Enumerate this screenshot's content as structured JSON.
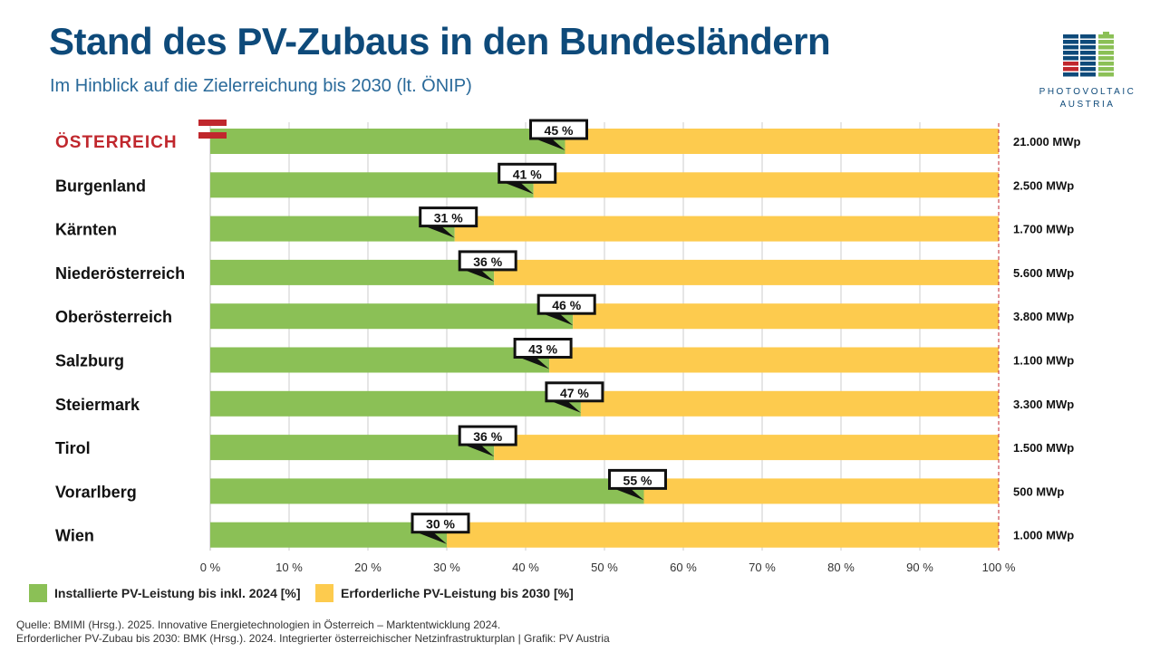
{
  "title": "Stand des PV-Zubaus in den Bundesländern",
  "subtitle": "Im Hinblick auf die Zielerreichung bis 2030 (lt. ÖNIP)",
  "logo": {
    "line1": "PHOTOVOLTAIC",
    "line2": "AUSTRIA"
  },
  "colors": {
    "installed": "#8bc056",
    "required": "#fdcb4e",
    "title": "#0e4a7a",
    "highlight": "#c0272d"
  },
  "chart_data": {
    "type": "bar",
    "orientation": "horizontal-stacked-100",
    "categories": [
      "ÖSTERREICH",
      "Burgenland",
      "Kärnten",
      "Niederösterreich",
      "Oberösterreich",
      "Salzburg",
      "Steiermark",
      "Tirol",
      "Vorarlberg",
      "Wien"
    ],
    "series": [
      {
        "name": "Installierte PV-Leistung bis inkl. 2024 [%]",
        "values": [
          45,
          41,
          31,
          36,
          46,
          43,
          47,
          36,
          55,
          30
        ]
      },
      {
        "name": "Erforderliche PV-Leistung bis 2030 [%]",
        "values": [
          55,
          59,
          69,
          64,
          54,
          57,
          53,
          64,
          45,
          70
        ]
      }
    ],
    "data_labels": [
      "45 %",
      "41 %",
      "31 %",
      "36 %",
      "46 %",
      "43 %",
      "47 %",
      "36 %",
      "55 %",
      "30 %"
    ],
    "targets": [
      "21.000 MWp",
      "2.500 MWp",
      "1.700 MWp",
      "5.600 MWp",
      "3.800 MWp",
      "1.100 MWp",
      "3.300 MWp",
      "1.500 MWp",
      "500 MWp",
      "1.000 MWp"
    ],
    "xlim": [
      0,
      100
    ],
    "xticks": [
      "0 %",
      "10 %",
      "20 %",
      "30 %",
      "40 %",
      "50 %",
      "60 %",
      "70 %",
      "80 %",
      "90 %",
      "100 %"
    ],
    "grid": true,
    "legend": "bottom"
  },
  "source": {
    "line1": "Quelle: BMIMI (Hrsg.). 2025. Innovative Energietechnologien in Österreich – Marktentwicklung 2024.",
    "line2": "Erforderlicher PV-Zubau bis 2030: BMK (Hrsg.). 2024. Integrierter österreichischer Netzinfrastrukturplan | Grafik: PV Austria"
  }
}
